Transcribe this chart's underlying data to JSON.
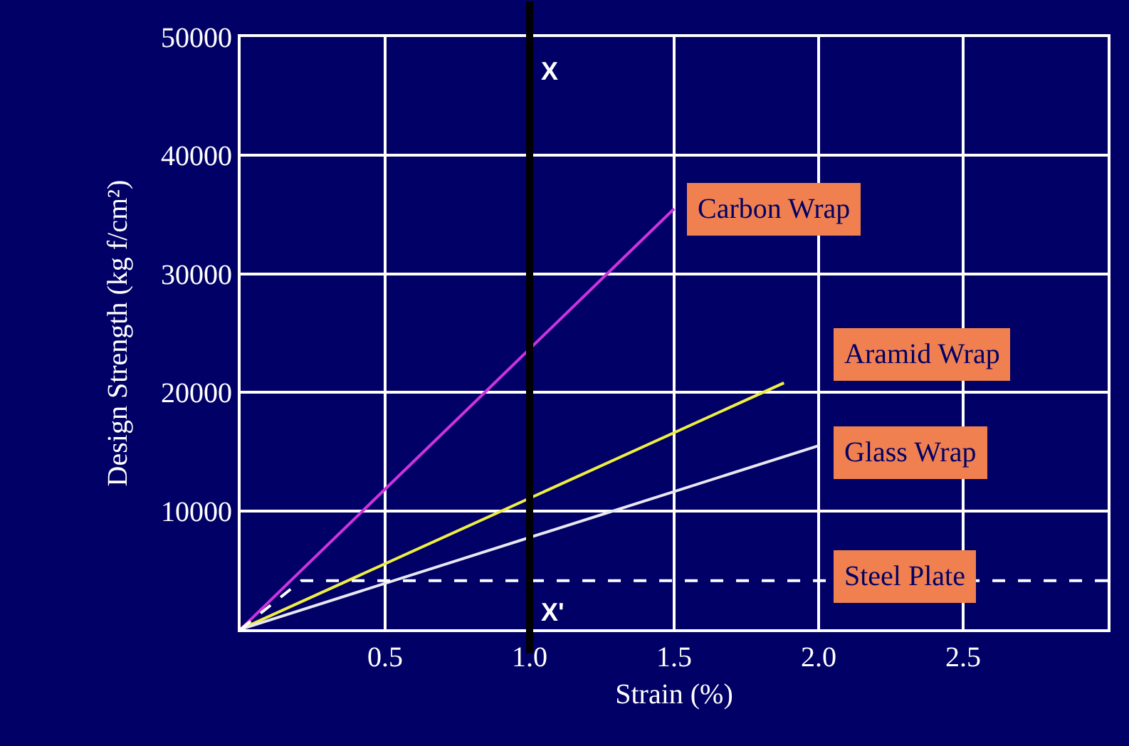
{
  "chart_data": {
    "type": "line",
    "xlabel": "Strain (%)",
    "ylabel": "Design Strength (kg f/cm²)",
    "series": [
      {
        "name": "Carbon Wrap",
        "color": "#cc33dd",
        "x": [
          0,
          1.5
        ],
        "values": [
          0,
          35500
        ]
      },
      {
        "name": "Aramid Wrap",
        "color": "#eeee44",
        "x": [
          0,
          1.88
        ],
        "values": [
          0,
          20800
        ]
      },
      {
        "name": "Glass Wrap",
        "color": "#e8e8f0",
        "x": [
          0,
          2.0
        ],
        "values": [
          0,
          15500
        ]
      },
      {
        "name": "Steel Plate",
        "color": "#ffffff",
        "x": [
          0,
          0.21,
          3.0
        ],
        "values": [
          0,
          4100,
          4100
        ],
        "line_style": "dashed"
      }
    ],
    "xlim": [
      0,
      3.0
    ],
    "ylim": [
      0,
      50000
    ],
    "xticks": [
      {
        "value": 0.5,
        "label": "0.5"
      },
      {
        "value": 1.0,
        "label": "1.0"
      },
      {
        "value": 1.5,
        "label": "1.5"
      },
      {
        "value": 2.0,
        "label": "2.0"
      },
      {
        "value": 2.5,
        "label": "2.5"
      }
    ],
    "yticks": [
      10000,
      20000,
      30000,
      40000,
      50000
    ],
    "grid": true,
    "legend": false,
    "marker": "none",
    "line_style": "solid",
    "ref_lines": [
      {
        "axis": "x",
        "value": 1.0,
        "label": "X",
        "color": "#000000"
      }
    ],
    "annotations": [
      {
        "text": "X'",
        "x": 1.0,
        "y": 0
      }
    ]
  }
}
